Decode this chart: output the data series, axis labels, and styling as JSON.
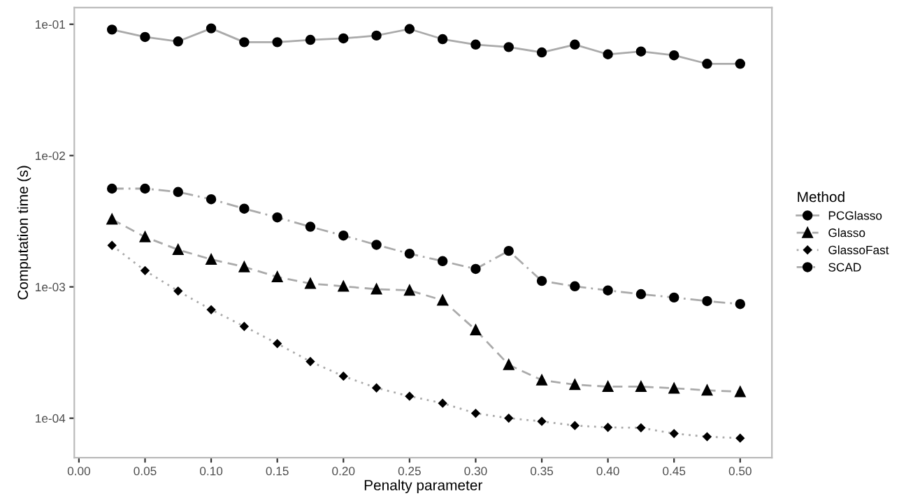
{
  "chart_data": {
    "type": "line",
    "xlabel": "Penalty parameter",
    "ylabel": "Computation time (s)",
    "legend_title": "Method",
    "legend": "right",
    "log": "y",
    "grid": false,
    "x": [
      0.025,
      0.05,
      0.075,
      0.1,
      0.125,
      0.15,
      0.175,
      0.2,
      0.225,
      0.25,
      0.275,
      0.3,
      0.325,
      0.35,
      0.375,
      0.4,
      0.425,
      0.45,
      0.475,
      0.5
    ],
    "series": [
      {
        "name": "PCGlasso",
        "color": "#000000",
        "marker": "circle",
        "line_style": "solid",
        "values": [
          0.091,
          0.08,
          0.074,
          0.093,
          0.073,
          0.073,
          0.076,
          0.078,
          0.082,
          0.092,
          0.077,
          0.07,
          0.067,
          0.061,
          0.07,
          0.059,
          0.062,
          0.058,
          0.05,
          0.05
        ]
      },
      {
        "name": "Glasso",
        "color": "#000000",
        "marker": "triangle",
        "line_style": "dashed",
        "values": [
          0.00327,
          0.0024,
          0.00192,
          0.00162,
          0.00142,
          0.00119,
          0.00106,
          0.00101,
          0.00096,
          0.00094,
          0.00079,
          0.00047,
          0.000255,
          0.000195,
          0.00018,
          0.000174,
          0.000174,
          0.000169,
          0.000163,
          0.000159
        ]
      },
      {
        "name": "GlassoFast",
        "color": "#000000",
        "marker": "diamond",
        "line_style": "dotted",
        "values": [
          0.00207,
          0.00133,
          0.00093,
          0.00067,
          0.0005,
          0.00037,
          0.00027,
          0.000209,
          0.00017,
          0.000147,
          0.00013,
          0.000109,
          0.0001,
          9.46e-05,
          8.79e-05,
          8.51e-05,
          8.45e-05,
          7.64e-05,
          7.23e-05,
          7.05e-05
        ]
      },
      {
        "name": "SCAD",
        "color": "#000000",
        "marker": "circle",
        "line_style": "dashdot",
        "values": [
          0.0056,
          0.0056,
          0.00528,
          0.00465,
          0.00394,
          0.00338,
          0.00287,
          0.00246,
          0.00209,
          0.00179,
          0.00157,
          0.00137,
          0.00188,
          0.00111,
          0.00101,
          0.00094,
          0.00088,
          0.00083,
          0.00078,
          0.00074
        ]
      }
    ],
    "xlim": [
      -0.0035,
      0.524
    ],
    "xticks": [
      {
        "value": 0,
        "label": "0.00"
      },
      {
        "value": 0.05,
        "label": "0.05"
      },
      {
        "value": 0.1,
        "label": "0.10"
      },
      {
        "value": 0.15,
        "label": "0.15"
      },
      {
        "value": 0.2,
        "label": "0.20"
      },
      {
        "value": 0.25,
        "label": "0.25"
      },
      {
        "value": 0.3,
        "label": "0.30"
      },
      {
        "value": 0.35,
        "label": "0.35"
      },
      {
        "value": 0.4,
        "label": "0.40"
      },
      {
        "value": 0.45,
        "label": "0.45"
      },
      {
        "value": 0.5,
        "label": "0.50"
      }
    ],
    "ylim": [
      5e-05,
      0.134
    ],
    "yticks": [
      {
        "value": 0.0001,
        "label": "1e-04"
      },
      {
        "value": 0.001,
        "label": "1e-03"
      },
      {
        "value": 0.01,
        "label": "1e-02"
      },
      {
        "value": 0.1,
        "label": "1e-01"
      }
    ]
  }
}
